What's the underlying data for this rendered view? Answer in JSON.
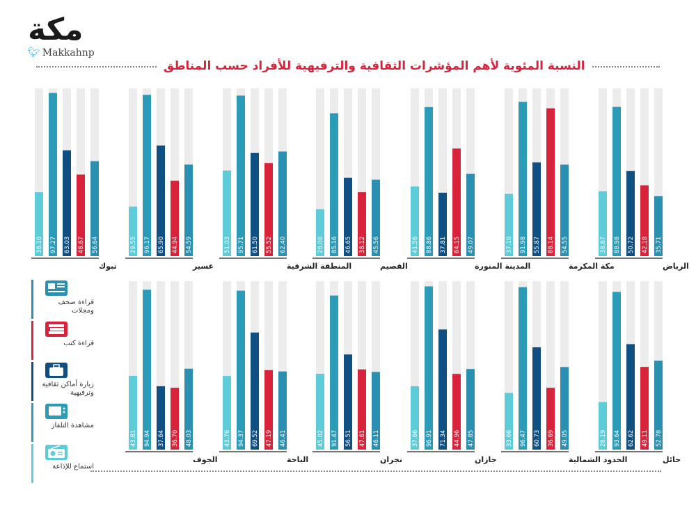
{
  "logo": {
    "word": "مكة",
    "handle": "Makkahnp"
  },
  "title": "النسبة المئوية لأهم المؤشرات الثقافية والترفيهية للأفراد حسب المناطق",
  "legend": [
    {
      "label": "قراءة صحف ومجلات",
      "color": "#2a8fb0",
      "icon": "newspaper-icon"
    },
    {
      "label": "قراءة كتب",
      "color": "#d9233a",
      "icon": "books-icon"
    },
    {
      "label": "زيارة أماكن ثقافية وترفيهية",
      "color": "#0f4f82",
      "icon": "suitcase-icon"
    },
    {
      "label": "مشاهدة التلفاز",
      "color": "#2c9bb8",
      "icon": "tv-icon"
    },
    {
      "label": "استماع للإذاعة",
      "color": "#5ecbd8",
      "icon": "radio-icon"
    }
  ],
  "chart_data": {
    "type": "bar",
    "title": "النسبة المئوية لأهم المؤشرات الثقافية والترفيهية للأفراد حسب المناطق",
    "ylim": [
      0,
      100
    ],
    "series": [
      {
        "name": "استماع للإذاعة",
        "color": "#5ecbd8"
      },
      {
        "name": "مشاهدة التلفاز",
        "color": "#2c9bb8"
      },
      {
        "name": "زيارة أماكن ثقافية وترفيهية",
        "color": "#0f4f82"
      },
      {
        "name": "قراءة كتب",
        "color": "#d9233a"
      },
      {
        "name": "قراءة صحف ومجلات",
        "color": "#2a8fb0"
      }
    ],
    "regions": [
      {
        "name": "تبوك",
        "values": [
          38.1,
          97.27,
          63.03,
          48.67,
          56.64
        ],
        "labels": [
          "38.10",
          "97.27",
          "63.03",
          "48.67",
          "56.64"
        ]
      },
      {
        "name": "عسير",
        "values": [
          29.55,
          96.17,
          65.9,
          44.94,
          54.59
        ],
        "labels": [
          "29.55",
          "96.17",
          "65.90",
          "44.94",
          "54.59"
        ]
      },
      {
        "name": "المنطقة الشرقية",
        "values": [
          51.03,
          95.71,
          61.5,
          55.52,
          62.4
        ],
        "labels": [
          "51.03",
          "95.71",
          "61.50",
          "55.52",
          "62.40"
        ]
      },
      {
        "name": "القصيم",
        "values": [
          28.0,
          85.16,
          46.65,
          38.12,
          45.56
        ],
        "labels": [
          "28.00",
          "85.16",
          "46.65",
          "38.12",
          "45.56"
        ]
      },
      {
        "name": "المدينة المنورة",
        "values": [
          41.56,
          88.86,
          37.81,
          64.15,
          49.07
        ],
        "labels": [
          "41.56",
          "88.86",
          "37.81",
          "64.15",
          "49.07"
        ]
      },
      {
        "name": "مكة المكرمة",
        "values": [
          37.1,
          91.98,
          55.87,
          88.14,
          54.55
        ],
        "labels": [
          "37.10",
          "91.98",
          "55.87",
          "88.14",
          "54.55"
        ]
      },
      {
        "name": "الرياض",
        "values": [
          38.67,
          88.98,
          50.72,
          42.18,
          35.71
        ],
        "labels": [
          "38.67",
          "88.98",
          "50.72",
          "42.18",
          "35.71"
        ]
      },
      {
        "name": "الجوف",
        "values": [
          43.81,
          94.94,
          37.64,
          36.7,
          48.03
        ],
        "labels": [
          "43.81",
          "94.94",
          "37.64",
          "36.70",
          "48.03"
        ]
      },
      {
        "name": "الباحة",
        "values": [
          43.76,
          94.37,
          69.52,
          47.19,
          46.41
        ],
        "labels": [
          "43.76",
          "94.37",
          "69.52",
          "47.19",
          "46.41"
        ]
      },
      {
        "name": "نجران",
        "values": [
          45.02,
          91.47,
          56.51,
          47.61,
          46.11
        ],
        "labels": [
          "45.02",
          "91.47",
          "56.51",
          "47.61",
          "46.11"
        ]
      },
      {
        "name": "جازان",
        "values": [
          37.66,
          96.91,
          71.34,
          44.96,
          47.85
        ],
        "labels": [
          "37.66",
          "96.91",
          "71.34",
          "44.96",
          "47.85"
        ]
      },
      {
        "name": "الحدود الشمالية",
        "values": [
          33.66,
          96.47,
          60.73,
          36.69,
          49.05
        ],
        "labels": [
          "33.66",
          "96.47",
          "60.73",
          "36.69",
          "49.05"
        ]
      },
      {
        "name": "حائل",
        "values": [
          28.19,
          93.64,
          62.62,
          49.11,
          52.78
        ],
        "labels": [
          "28.19",
          "93.64",
          "62.62",
          "49.11",
          "52.78"
        ]
      }
    ]
  }
}
